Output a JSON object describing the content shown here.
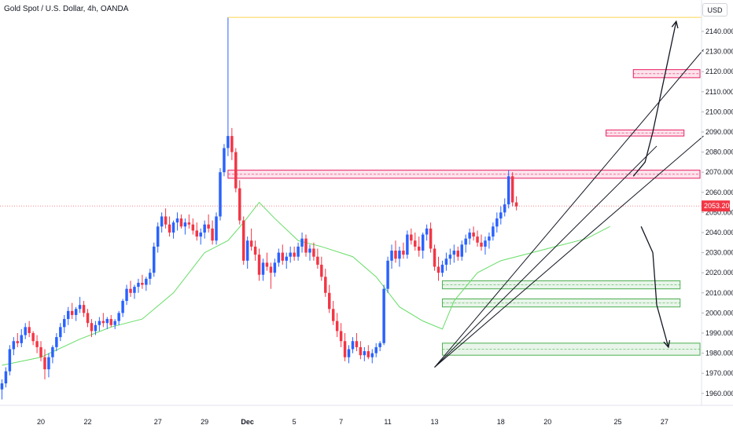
{
  "header": {
    "title": "Gold Spot / U.S. Dollar, 4h, OANDA",
    "currency_button": "USD"
  },
  "chart_data": {
    "type": "candlestick",
    "title": "Gold Spot / U.S. Dollar, 4h, OANDA",
    "y_axis_unit": "USD",
    "ylim": [
      1955,
      2147
    ],
    "y_ticks": [
      1960,
      1970,
      1980,
      1990,
      2000,
      2010,
      2020,
      2030,
      2040,
      2050,
      2060,
      2070,
      2080,
      2090,
      2100,
      2110,
      2120,
      2130,
      2140
    ],
    "y_tick_labels": [
      "1960.000",
      "1970.000",
      "1980.000",
      "1990.000",
      "2000.000",
      "2010.000",
      "2020.000",
      "2030.000",
      "2040.000",
      "2050.000",
      "2060.000",
      "2070.000",
      "2080.000",
      "2090.000",
      "2100.000",
      "2110.000",
      "2120.000",
      "2130.000",
      "2140.000"
    ],
    "x_tick_labels": [
      {
        "label": "20",
        "bar": 10
      },
      {
        "label": "22",
        "bar": 22
      },
      {
        "label": "27",
        "bar": 40
      },
      {
        "label": "29",
        "bar": 52
      },
      {
        "label": "Dec",
        "bar": 63,
        "bold": true
      },
      {
        "label": "5",
        "bar": 75
      },
      {
        "label": "7",
        "bar": 87
      },
      {
        "label": "11",
        "bar": 99
      },
      {
        "label": "13",
        "bar": 111
      },
      {
        "label": "18",
        "bar": 128
      },
      {
        "label": "20",
        "bar": 140
      },
      {
        "label": "25",
        "bar": 158
      },
      {
        "label": "27",
        "bar": 170
      }
    ],
    "total_slots": 180,
    "last_price": {
      "value": 2053.2,
      "label": "2053.200",
      "color": "#f23645"
    },
    "up_color": "#2962ff",
    "down_color": "#f23645",
    "ma_color": "#66dd66",
    "candles": [
      [
        1962,
        1967,
        1957,
        1965
      ],
      [
        1965,
        1973,
        1963,
        1971
      ],
      [
        1971,
        1984,
        1969,
        1982
      ],
      [
        1982,
        1988,
        1979,
        1986
      ],
      [
        1986,
        1990,
        1983,
        1985
      ],
      [
        1985,
        1992,
        1983,
        1989
      ],
      [
        1989,
        1995,
        1987,
        1993
      ],
      [
        1993,
        1996,
        1988,
        1990
      ],
      [
        1990,
        1991,
        1984,
        1986
      ],
      [
        1986,
        1989,
        1980,
        1983
      ],
      [
        1983,
        1986,
        1976,
        1978
      ],
      [
        1978,
        1982,
        1967,
        1972
      ],
      [
        1972,
        1980,
        1968,
        1978
      ],
      [
        1978,
        1984,
        1975,
        1983
      ],
      [
        1983,
        1990,
        1981,
        1988
      ],
      [
        1988,
        1995,
        1986,
        1993
      ],
      [
        1993,
        1999,
        1990,
        1997
      ],
      [
        1997,
        2003,
        1994,
        2001
      ],
      [
        2001,
        2005,
        1997,
        1999
      ],
      [
        1999,
        2003,
        1996,
        2002
      ],
      [
        2002,
        2008,
        2000,
        2004
      ],
      [
        2004,
        2006,
        1998,
        2000
      ],
      [
        2000,
        2002,
        1993,
        1995
      ],
      [
        1995,
        1997,
        1988,
        1991
      ],
      [
        1991,
        1996,
        1989,
        1994
      ],
      [
        1994,
        1998,
        1991,
        1996
      ],
      [
        1996,
        2000,
        1993,
        1995
      ],
      [
        1995,
        1998,
        1992,
        1997
      ],
      [
        1997,
        1999,
        1993,
        1994
      ],
      [
        1994,
        1997,
        1992,
        1996
      ],
      [
        1996,
        2001,
        1994,
        2000
      ],
      [
        2000,
        2007,
        1998,
        2006
      ],
      [
        2006,
        2014,
        2004,
        2012
      ],
      [
        2012,
        2016,
        2008,
        2010
      ],
      [
        2010,
        2014,
        2007,
        2013
      ],
      [
        2013,
        2017,
        2010,
        2015
      ],
      [
        2015,
        2019,
        2012,
        2014
      ],
      [
        2014,
        2018,
        2011,
        2017
      ],
      [
        2017,
        2022,
        2014,
        2020
      ],
      [
        2020,
        2035,
        2018,
        2033
      ],
      [
        2033,
        2045,
        2030,
        2043
      ],
      [
        2043,
        2050,
        2040,
        2048
      ],
      [
        2048,
        2052,
        2042,
        2044
      ],
      [
        2044,
        2048,
        2038,
        2040
      ],
      [
        2040,
        2046,
        2037,
        2045
      ],
      [
        2045,
        2050,
        2041,
        2047
      ],
      [
        2047,
        2049,
        2042,
        2043
      ],
      [
        2043,
        2047,
        2039,
        2045
      ],
      [
        2045,
        2049,
        2042,
        2044
      ],
      [
        2044,
        2047,
        2039,
        2041
      ],
      [
        2041,
        2045,
        2036,
        2038
      ],
      [
        2038,
        2042,
        2034,
        2040
      ],
      [
        2040,
        2046,
        2037,
        2044
      ],
      [
        2044,
        2049,
        2040,
        2042
      ],
      [
        2042,
        2046,
        2034,
        2036
      ],
      [
        2036,
        2050,
        2034,
        2048
      ],
      [
        2048,
        2072,
        2046,
        2070
      ],
      [
        2070,
        2084,
        2068,
        2082
      ],
      [
        2082,
        2147,
        2078,
        2088
      ],
      [
        2088,
        2092,
        2076,
        2080
      ],
      [
        2080,
        2082,
        2060,
        2062
      ],
      [
        2062,
        2066,
        2044,
        2046
      ],
      [
        2046,
        2048,
        2024,
        2026
      ],
      [
        2026,
        2038,
        2022,
        2036
      ],
      [
        2036,
        2042,
        2031,
        2033
      ],
      [
        2033,
        2036,
        2026,
        2029
      ],
      [
        2029,
        2032,
        2016,
        2019
      ],
      [
        2019,
        2027,
        2016,
        2025
      ],
      [
        2025,
        2030,
        2021,
        2023
      ],
      [
        2023,
        2025,
        2012,
        2020
      ],
      [
        2020,
        2027,
        2018,
        2025
      ],
      [
        2025,
        2032,
        2023,
        2030
      ],
      [
        2030,
        2034,
        2024,
        2026
      ],
      [
        2026,
        2030,
        2022,
        2028
      ],
      [
        2028,
        2033,
        2025,
        2030
      ],
      [
        2030,
        2033,
        2026,
        2028
      ],
      [
        2028,
        2035,
        2026,
        2033
      ],
      [
        2033,
        2040,
        2030,
        2037
      ],
      [
        2037,
        2039,
        2028,
        2030
      ],
      [
        2030,
        2034,
        2026,
        2032
      ],
      [
        2032,
        2035,
        2026,
        2028
      ],
      [
        2028,
        2032,
        2022,
        2024
      ],
      [
        2024,
        2028,
        2016,
        2018
      ],
      [
        2018,
        2022,
        2008,
        2010
      ],
      [
        2010,
        2014,
        2000,
        2002
      ],
      [
        2002,
        2006,
        1994,
        1996
      ],
      [
        1996,
        2000,
        1988,
        1991
      ],
      [
        1991,
        1995,
        1983,
        1986
      ],
      [
        1986,
        1990,
        1976,
        1978
      ],
      [
        1978,
        1984,
        1975,
        1982
      ],
      [
        1982,
        1988,
        1980,
        1986
      ],
      [
        1986,
        1990,
        1981,
        1983
      ],
      [
        1983,
        1986,
        1977,
        1979
      ],
      [
        1979,
        1983,
        1976,
        1981
      ],
      [
        1981,
        1984,
        1977,
        1978
      ],
      [
        1978,
        1982,
        1975,
        1980
      ],
      [
        1980,
        1985,
        1978,
        1983
      ],
      [
        1983,
        1986,
        1981,
        1985
      ],
      [
        1985,
        2014,
        1984,
        2012
      ],
      [
        2012,
        2028,
        2010,
        2026
      ],
      [
        2026,
        2034,
        2022,
        2031
      ],
      [
        2031,
        2036,
        2025,
        2027
      ],
      [
        2027,
        2033,
        2023,
        2031
      ],
      [
        2031,
        2035,
        2027,
        2029
      ],
      [
        2029,
        2041,
        2027,
        2039
      ],
      [
        2039,
        2042,
        2034,
        2036
      ],
      [
        2036,
        2040,
        2031,
        2033
      ],
      [
        2033,
        2038,
        2028,
        2031
      ],
      [
        2031,
        2040,
        2027,
        2039
      ],
      [
        2039,
        2044,
        2036,
        2042
      ],
      [
        2042,
        2045,
        2030,
        2032
      ],
      [
        2032,
        2034,
        2021,
        2023
      ],
      [
        2023,
        2028,
        2016,
        2020
      ],
      [
        2020,
        2026,
        2018,
        2024
      ],
      [
        2024,
        2030,
        2021,
        2027
      ],
      [
        2027,
        2032,
        2024,
        2029
      ],
      [
        2029,
        2034,
        2025,
        2031
      ],
      [
        2031,
        2033,
        2026,
        2028
      ],
      [
        2028,
        2036,
        2026,
        2034
      ],
      [
        2034,
        2039,
        2030,
        2037
      ],
      [
        2037,
        2042,
        2034,
        2040
      ],
      [
        2040,
        2043,
        2036,
        2038
      ],
      [
        2038,
        2041,
        2033,
        2035
      ],
      [
        2035,
        2039,
        2031,
        2033
      ],
      [
        2033,
        2038,
        2029,
        2036
      ],
      [
        2036,
        2040,
        2032,
        2038
      ],
      [
        2038,
        2045,
        2036,
        2043
      ],
      [
        2043,
        2050,
        2040,
        2047
      ],
      [
        2047,
        2053,
        2044,
        2050
      ],
      [
        2050,
        2057,
        2048,
        2054
      ],
      [
        2054,
        2071,
        2052,
        2068
      ],
      [
        2068,
        2070,
        2053,
        2055
      ],
      [
        2055,
        2058,
        2051,
        2053
      ]
    ],
    "moving_average": [
      [
        0,
        1974
      ],
      [
        10,
        1978
      ],
      [
        20,
        1987
      ],
      [
        28,
        1993
      ],
      [
        36,
        1997
      ],
      [
        44,
        2010
      ],
      [
        52,
        2030
      ],
      [
        58,
        2036
      ],
      [
        62,
        2045
      ],
      [
        66,
        2055
      ],
      [
        70,
        2047
      ],
      [
        76,
        2036
      ],
      [
        82,
        2033
      ],
      [
        90,
        2028
      ],
      [
        96,
        2018
      ],
      [
        102,
        2003
      ],
      [
        108,
        1996
      ],
      [
        113,
        1992
      ],
      [
        116,
        2006
      ],
      [
        122,
        2020
      ],
      [
        128,
        2026
      ],
      [
        136,
        2030
      ],
      [
        142,
        2033
      ],
      [
        150,
        2037
      ],
      [
        156,
        2043
      ]
    ],
    "drawings": {
      "ath_line": {
        "start_bar": 58,
        "price": 2147,
        "color": "#ffd54f"
      },
      "zones": [
        {
          "start_bar": 58,
          "end_bar": 180,
          "top": 2071,
          "bottom": 2067,
          "color": "#e91e63"
        },
        {
          "start_bar": 155,
          "end_bar": 175,
          "top": 2091,
          "bottom": 2088,
          "color": "#e91e63"
        },
        {
          "start_bar": 162,
          "end_bar": 180,
          "top": 2121,
          "bottom": 2117,
          "color": "#e91e63"
        },
        {
          "start_bar": 113,
          "end_bar": 174,
          "top": 2016,
          "bottom": 2012,
          "color": "#4caf50"
        },
        {
          "start_bar": 113,
          "end_bar": 174,
          "top": 2007,
          "bottom": 2003,
          "color": "#4caf50"
        },
        {
          "start_bar": 113,
          "end_bar": 180,
          "top": 1985,
          "bottom": 1979,
          "color": "#4caf50"
        }
      ],
      "trend_lines": [
        {
          "from": [
            111,
            1973
          ],
          "to": [
            180,
            2131
          ]
        },
        {
          "from": [
            111,
            1973
          ],
          "to": [
            180,
            2088
          ]
        },
        {
          "from": [
            111,
            1973
          ],
          "to": [
            168,
            2083
          ]
        }
      ],
      "arrow_paths": [
        [
          [
            162,
            2068
          ],
          [
            165,
            2075
          ],
          [
            167,
            2090
          ],
          [
            173,
            2145
          ]
        ],
        [
          [
            164,
            2043
          ],
          [
            167,
            2030
          ],
          [
            168,
            2004
          ],
          [
            171,
            1983
          ]
        ]
      ]
    }
  }
}
